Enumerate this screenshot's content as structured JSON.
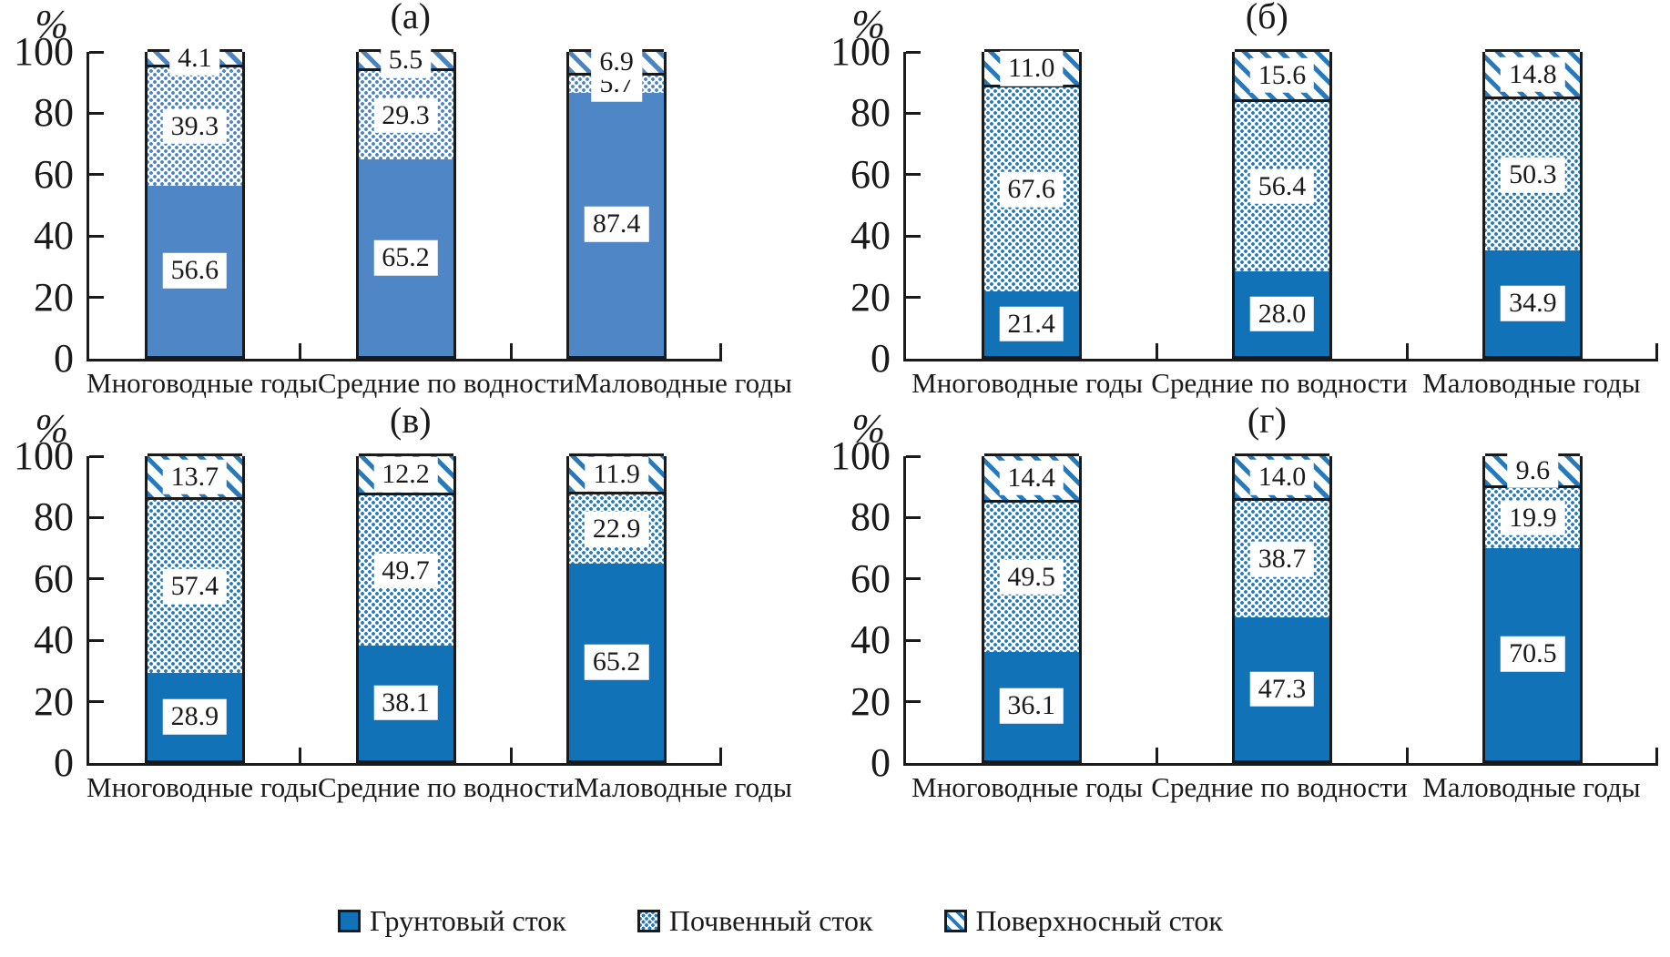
{
  "figure": {
    "background": "#ffffff"
  },
  "axis": {
    "unit_label": "%",
    "ticks": [
      0,
      20,
      40,
      60,
      80,
      100
    ],
    "ylim": [
      0,
      100
    ],
    "grid": false
  },
  "categories": [
    "Многоводные годы",
    "Средние по водности",
    "Маловодные годы"
  ],
  "legend": {
    "position": "bottom-center",
    "items": [
      {
        "label": "Грунтовый сток",
        "swatch": "solid"
      },
      {
        "label": "Почвенный сток",
        "swatch": "dots"
      },
      {
        "label": "Поверхносный сток",
        "swatch": "hatch"
      }
    ]
  },
  "colors": {
    "panel_a_solid": "#4f86c6",
    "panel_a_pattern": "#4a84c4",
    "other_solid": "#1272b8",
    "other_pattern": "#2579bd",
    "border": "#1a1a1a",
    "label_box": "#ffffff"
  },
  "chart_data": [
    {
      "type": "bar",
      "stacked": true,
      "title": "(а)",
      "ylabel": "%",
      "ylim": [
        0,
        100
      ],
      "colors": {
        "solid": "#4f86c6",
        "pattern": "#4a84c4"
      },
      "categories": [
        "Многоводные годы",
        "Средние по водности",
        "Маловодные годы"
      ],
      "series": [
        {
          "name": "Грунтовый сток",
          "pattern": "solid",
          "values": [
            56.6,
            65.2,
            87.4
          ]
        },
        {
          "name": "Почвенный сток",
          "pattern": "dots",
          "values": [
            39.3,
            29.3,
            5.7
          ]
        },
        {
          "name": "Поверхносный сток",
          "pattern": "hatch",
          "values": [
            4.1,
            5.5,
            6.9
          ]
        }
      ]
    },
    {
      "type": "bar",
      "stacked": true,
      "title": "(б)",
      "ylabel": "%",
      "ylim": [
        0,
        100
      ],
      "colors": {
        "solid": "#1272b8",
        "pattern": "#2579bd"
      },
      "categories": [
        "Многоводные годы",
        "Средние по водности",
        "Маловодные годы"
      ],
      "series": [
        {
          "name": "Грунтовый сток",
          "pattern": "solid",
          "values": [
            21.4,
            28.0,
            34.9
          ]
        },
        {
          "name": "Почвенный сток",
          "pattern": "dots",
          "values": [
            67.6,
            56.4,
            50.3
          ]
        },
        {
          "name": "Поверхносный сток",
          "pattern": "hatch",
          "values": [
            11.0,
            15.6,
            14.8
          ]
        }
      ]
    },
    {
      "type": "bar",
      "stacked": true,
      "title": "(в)",
      "ylabel": "%",
      "ylim": [
        0,
        100
      ],
      "colors": {
        "solid": "#1272b8",
        "pattern": "#2579bd"
      },
      "categories": [
        "Многоводные годы",
        "Средние по водности",
        "Маловодные годы"
      ],
      "series": [
        {
          "name": "Грунтовый сток",
          "pattern": "solid",
          "values": [
            28.9,
            38.1,
            65.2
          ]
        },
        {
          "name": "Почвенный сток",
          "pattern": "dots",
          "values": [
            57.4,
            49.7,
            22.9
          ]
        },
        {
          "name": "Поверхносный сток",
          "pattern": "hatch",
          "values": [
            13.7,
            12.2,
            11.9
          ]
        }
      ]
    },
    {
      "type": "bar",
      "stacked": true,
      "title": "(г)",
      "ylabel": "%",
      "ylim": [
        0,
        100
      ],
      "colors": {
        "solid": "#1272b8",
        "pattern": "#2579bd"
      },
      "categories": [
        "Многоводные годы",
        "Средние по водности",
        "Маловодные годы"
      ],
      "series": [
        {
          "name": "Грунтовый сток",
          "pattern": "solid",
          "values": [
            36.1,
            47.3,
            70.5
          ]
        },
        {
          "name": "Почвенный сток",
          "pattern": "dots",
          "values": [
            49.5,
            38.7,
            19.9
          ]
        },
        {
          "name": "Поверхносный сток",
          "pattern": "hatch",
          "values": [
            14.4,
            14.0,
            9.6
          ]
        }
      ]
    }
  ]
}
